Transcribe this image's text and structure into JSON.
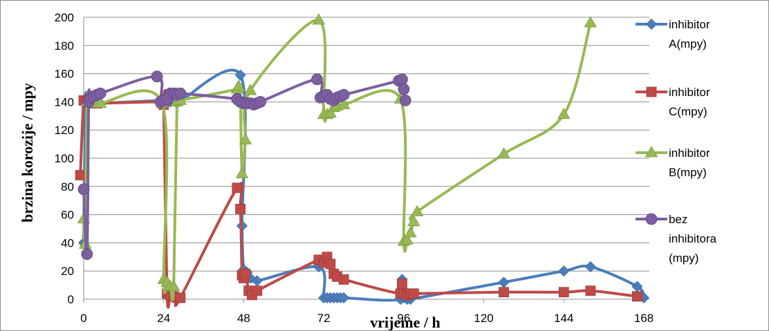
{
  "chart_data": {
    "type": "line",
    "title": "",
    "xlabel": "vrijeme / h",
    "ylabel": "brzina korozije / mpy",
    "xlim": [
      0,
      168
    ],
    "ylim": [
      0,
      200
    ],
    "x_ticks": [
      "0",
      "24",
      "48",
      "72",
      "96",
      "120",
      "144",
      "168"
    ],
    "y_ticks": [
      "0",
      "20",
      "40",
      "60",
      "80",
      "100",
      "120",
      "140",
      "160",
      "180",
      "200"
    ],
    "grid": "horizontal",
    "legend_position": "right",
    "series": [
      {
        "name": "inhibitor A(mpy)",
        "legend_lines": [
          "inhibitor",
          "A(mpy)"
        ],
        "color": "#4a7ebb",
        "marker": "diamond",
        "points": [
          [
            0,
            40
          ],
          [
            0.5,
            139
          ],
          [
            1,
            141
          ],
          [
            2,
            140
          ],
          [
            3,
            141
          ],
          [
            4,
            140
          ],
          [
            5,
            139
          ],
          [
            23.5,
            141
          ],
          [
            25,
            140
          ],
          [
            26,
            140
          ],
          [
            27,
            141
          ],
          [
            28,
            139
          ],
          [
            47,
            159
          ],
          [
            47.5,
            52
          ],
          [
            48,
            21
          ],
          [
            49,
            19
          ],
          [
            50,
            15
          ],
          [
            52,
            13
          ],
          [
            70.5,
            23
          ],
          [
            72,
            1
          ],
          [
            73,
            1
          ],
          [
            74,
            1
          ],
          [
            75,
            1
          ],
          [
            76,
            1
          ],
          [
            77,
            1
          ],
          [
            78,
            1
          ],
          [
            95,
            0
          ],
          [
            95.5,
            14
          ],
          [
            96,
            1
          ],
          [
            97,
            0
          ],
          [
            98,
            0
          ],
          [
            126,
            12
          ],
          [
            144,
            20
          ],
          [
            152,
            23
          ],
          [
            166,
            9
          ],
          [
            168,
            1
          ]
        ]
      },
      {
        "name": "inhibitor C(mpy)",
        "legend_lines": [
          "inhibitor",
          "C(mpy)"
        ],
        "color": "#be4b48",
        "marker": "square",
        "points": [
          [
            -1,
            88
          ],
          [
            0,
            141
          ],
          [
            1,
            140
          ],
          [
            2,
            139
          ],
          [
            3,
            140
          ],
          [
            4,
            139
          ],
          [
            23.5,
            140
          ],
          [
            24,
            138
          ],
          [
            25,
            4
          ],
          [
            26,
            3
          ],
          [
            27,
            2
          ],
          [
            28,
            1
          ],
          [
            29,
            1
          ],
          [
            46,
            79
          ],
          [
            47,
            64
          ],
          [
            47.5,
            17
          ],
          [
            48,
            15
          ],
          [
            48.5,
            18
          ],
          [
            49.5,
            6
          ],
          [
            50.5,
            3
          ],
          [
            52,
            6
          ],
          [
            70.5,
            28
          ],
          [
            72,
            26
          ],
          [
            73,
            30
          ],
          [
            74,
            25
          ],
          [
            75,
            18
          ],
          [
            76,
            16
          ],
          [
            78,
            14
          ],
          [
            95,
            4
          ],
          [
            95.5,
            11
          ],
          [
            96,
            4
          ],
          [
            97,
            3
          ],
          [
            98,
            4
          ],
          [
            99,
            4
          ],
          [
            126,
            5
          ],
          [
            144,
            5
          ],
          [
            152,
            6
          ],
          [
            166,
            2
          ]
        ]
      },
      {
        "name": "inhibitor B(mpy)",
        "legend_lines": [
          "inhibitor",
          "B(mpy)"
        ],
        "color": "#98b954",
        "marker": "triangle",
        "points": [
          [
            0,
            57
          ],
          [
            0.5,
            39
          ],
          [
            1,
            140
          ],
          [
            2,
            141
          ],
          [
            3,
            140
          ],
          [
            4,
            139
          ],
          [
            5,
            139
          ],
          [
            23.5,
            139
          ],
          [
            24,
            14
          ],
          [
            25,
            12
          ],
          [
            26,
            9
          ],
          [
            27,
            9
          ],
          [
            28,
            140
          ],
          [
            29,
            141
          ],
          [
            46,
            149
          ],
          [
            46.5,
            151
          ],
          [
            47,
            141
          ],
          [
            47.5,
            89
          ],
          [
            48.5,
            113
          ],
          [
            50,
            148
          ],
          [
            70.5,
            198
          ],
          [
            72,
            131
          ],
          [
            73,
            131
          ],
          [
            74,
            132
          ],
          [
            75,
            136
          ],
          [
            76,
            137
          ],
          [
            78,
            138
          ],
          [
            95,
            142
          ],
          [
            96,
            41
          ],
          [
            97,
            42
          ],
          [
            98,
            47
          ],
          [
            99,
            55
          ],
          [
            100,
            62
          ],
          [
            126,
            103
          ],
          [
            144,
            131
          ],
          [
            152,
            196
          ]
        ]
      },
      {
        "name": "bez inhibitora (mpy)",
        "legend_lines": [
          "bez",
          "inhibitora",
          "(mpy)"
        ],
        "color": "#7d5fa0",
        "marker": "circle",
        "points": [
          [
            0,
            78
          ],
          [
            1,
            32
          ],
          [
            1.5,
            140
          ],
          [
            2,
            143
          ],
          [
            3,
            144
          ],
          [
            4,
            145
          ],
          [
            5,
            146
          ],
          [
            22,
            158
          ],
          [
            23,
            140
          ],
          [
            24,
            141
          ],
          [
            25,
            142
          ],
          [
            26,
            146
          ],
          [
            27,
            146
          ],
          [
            28,
            145
          ],
          [
            29,
            146
          ],
          [
            46,
            142
          ],
          [
            47,
            140
          ],
          [
            48,
            139
          ],
          [
            49,
            139
          ],
          [
            50,
            139
          ],
          [
            51,
            138
          ],
          [
            52,
            139
          ],
          [
            53,
            140
          ],
          [
            70,
            156
          ],
          [
            71,
            143
          ],
          [
            72,
            144
          ],
          [
            73,
            145
          ],
          [
            74,
            142
          ],
          [
            75,
            141
          ],
          [
            76,
            143
          ],
          [
            77,
            144
          ],
          [
            78,
            145
          ],
          [
            94.5,
            155
          ],
          [
            95.5,
            156
          ],
          [
            96,
            149
          ],
          [
            96.5,
            141
          ]
        ]
      }
    ]
  }
}
